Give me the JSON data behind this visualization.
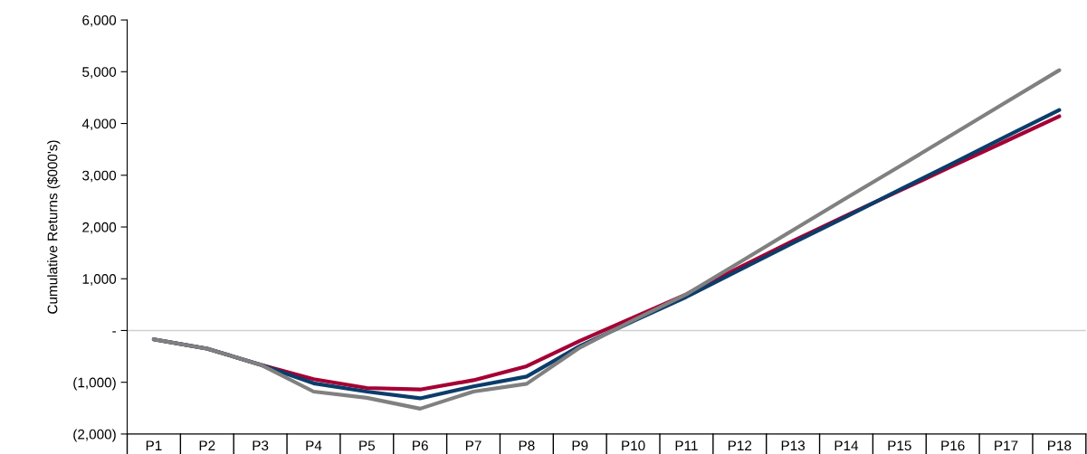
{
  "chart_data": {
    "type": "line",
    "ylabel": "Cumulative Returns ($000's)",
    "categories": [
      "P1",
      "P2",
      "P3",
      "P4",
      "P5",
      "P6",
      "P7",
      "P8",
      "P9",
      "P10",
      "P11",
      "P12",
      "P13",
      "P14",
      "P15",
      "P16",
      "P17",
      "P18"
    ],
    "series": [
      {
        "color": "#a50034",
        "values": [
          -170,
          -350,
          -660,
          -940,
          -1110,
          -1140,
          -960,
          -690,
          -200,
          250,
          700,
          1220,
          1730,
          2220,
          2700,
          3180,
          3660,
          4140
        ]
      },
      {
        "color": "#0b3d6b",
        "values": [
          -170,
          -350,
          -660,
          -1020,
          -1180,
          -1310,
          -1080,
          -890,
          -300,
          180,
          650,
          1170,
          1690,
          2200,
          2720,
          3230,
          3750,
          4260
        ]
      },
      {
        "color": "#808080",
        "values": [
          -170,
          -350,
          -660,
          -1180,
          -1300,
          -1510,
          -1180,
          -1030,
          -330,
          200,
          700,
          1320,
          1940,
          2560,
          3170,
          3790,
          4410,
          5030
        ]
      }
    ],
    "ylim": [
      -2000,
      6000
    ],
    "yticks": [
      {
        "value": -2000,
        "label": "(2,000)"
      },
      {
        "value": -1000,
        "label": "(1,000)"
      },
      {
        "value": 0,
        "label": "-"
      },
      {
        "value": 1000,
        "label": "1,000"
      },
      {
        "value": 2000,
        "label": "2,000"
      },
      {
        "value": 3000,
        "label": "3,000"
      },
      {
        "value": 4000,
        "label": "4,000"
      },
      {
        "value": 5000,
        "label": "5,000"
      },
      {
        "value": 6000,
        "label": "6,000"
      }
    ],
    "ref_lines": [
      {
        "axis": "y",
        "value": 0,
        "color": "#d0d0d0"
      }
    ],
    "grid": false,
    "marker": "none",
    "line_style": "solid"
  }
}
